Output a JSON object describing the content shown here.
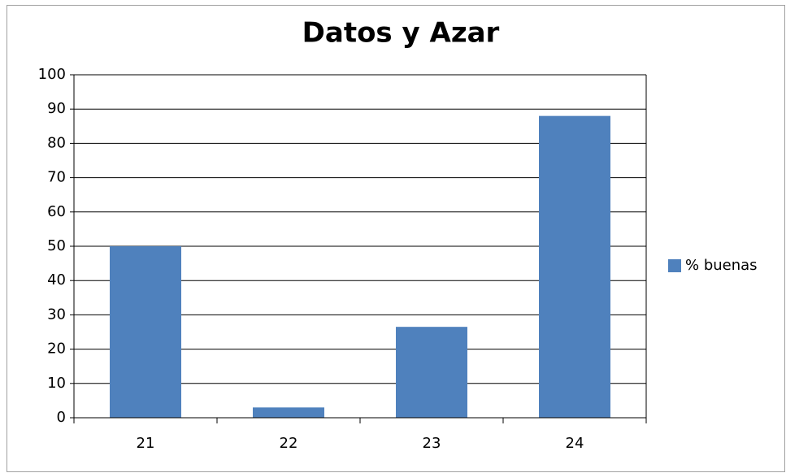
{
  "chart_data": {
    "type": "bar",
    "title": "Datos y Azar",
    "categories": [
      "21",
      "22",
      "23",
      "24"
    ],
    "series": [
      {
        "name": "% buenas",
        "color": "#4f81bd",
        "values": [
          50,
          3,
          26.5,
          88
        ]
      }
    ],
    "ylim": [
      0,
      100
    ],
    "yticks": [
      0,
      10,
      20,
      30,
      40,
      50,
      60,
      70,
      80,
      90,
      100
    ],
    "grid": true,
    "legend": "right"
  }
}
